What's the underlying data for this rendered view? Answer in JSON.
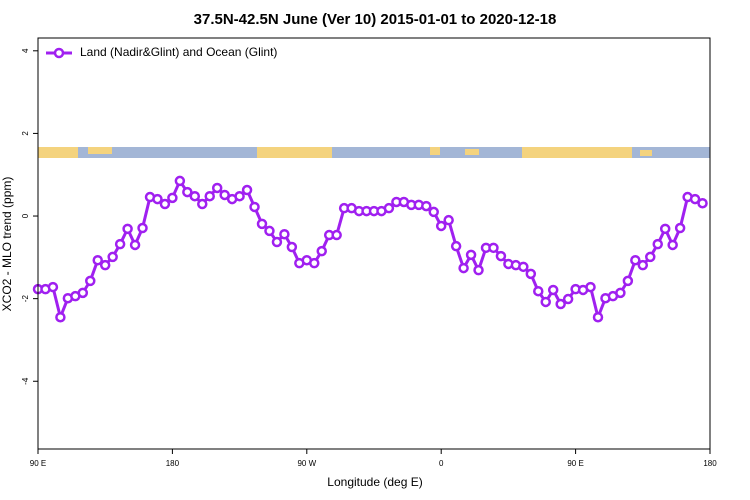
{
  "chart_data": {
    "type": "line",
    "title": "37.5N-42.5N June (Ver 10)   2015-01-01 to 2020-12-18",
    "x_label": "Longitude (deg E)",
    "y_label": "XCO2 - MLO trend (ppm)",
    "x": [
      90,
      95,
      100,
      105,
      110,
      115,
      120,
      125,
      130,
      135,
      140,
      145,
      150,
      155,
      160,
      165,
      170,
      175,
      180,
      185,
      190,
      195,
      200,
      205,
      210,
      215,
      220,
      225,
      230,
      235,
      240,
      245,
      250,
      255,
      260,
      265,
      270,
      275,
      280,
      285,
      290,
      295,
      300,
      305,
      310,
      315,
      320,
      325,
      330,
      335,
      340,
      345,
      350,
      355,
      360,
      365,
      370,
      375,
      380,
      385,
      390,
      395,
      400,
      405,
      410,
      415,
      420,
      425,
      430,
      435,
      440,
      445,
      450,
      455,
      460,
      465,
      470,
      475,
      480,
      485,
      490,
      495,
      500,
      505,
      510,
      515,
      520,
      525,
      530,
      535
    ],
    "series": [
      {
        "name": "Land (Nadir&Glint) and Ocean (Glint)",
        "color": "#a020f0",
        "values": [
          -1.77,
          -1.77,
          -1.72,
          -2.45,
          -1.99,
          -1.94,
          -1.86,
          -1.57,
          -1.07,
          -1.19,
          -0.99,
          -0.68,
          -0.31,
          -0.7,
          -0.29,
          0.46,
          0.41,
          0.29,
          0.44,
          0.85,
          0.58,
          0.48,
          0.29,
          0.48,
          0.68,
          0.51,
          0.41,
          0.48,
          0.63,
          0.22,
          -0.19,
          -0.36,
          -0.63,
          -0.44,
          -0.75,
          -1.14,
          -1.07,
          -1.14,
          -0.85,
          -0.46,
          -0.46,
          0.19,
          0.19,
          0.12,
          0.12,
          0.12,
          0.12,
          0.19,
          0.34,
          0.34,
          0.27,
          0.27,
          0.24,
          0.1,
          -0.24,
          -0.1,
          -0.73,
          -1.26,
          -0.94,
          -1.31,
          -0.77,
          -0.77,
          -0.97,
          -1.16,
          -1.19,
          -1.23,
          -1.4,
          -1.82,
          -2.08,
          -1.79,
          -2.13,
          -2.01,
          -1.77,
          -1.79,
          -1.72,
          -2.45,
          -1.99,
          -1.94,
          -1.86,
          -1.57,
          -1.07,
          -1.19,
          -0.99,
          -0.68,
          -0.31,
          -0.7,
          -0.29,
          0.46,
          0.41,
          0.31
        ]
      }
    ],
    "xlim": [
      90,
      540
    ],
    "xticks": [
      {
        "value": 90,
        "label": "90 E"
      },
      180,
      {
        "value": 270,
        "label": "90 W"
      },
      {
        "value": 360,
        "label": "0"
      },
      {
        "value": 450,
        "label": "90 E"
      },
      {
        "value": 540,
        "label": "180"
      }
    ],
    "ylim": [
      -5.64,
      4.31
    ],
    "yticks": [
      -4,
      -2,
      0,
      2,
      4
    ],
    "legend": "top-left"
  }
}
